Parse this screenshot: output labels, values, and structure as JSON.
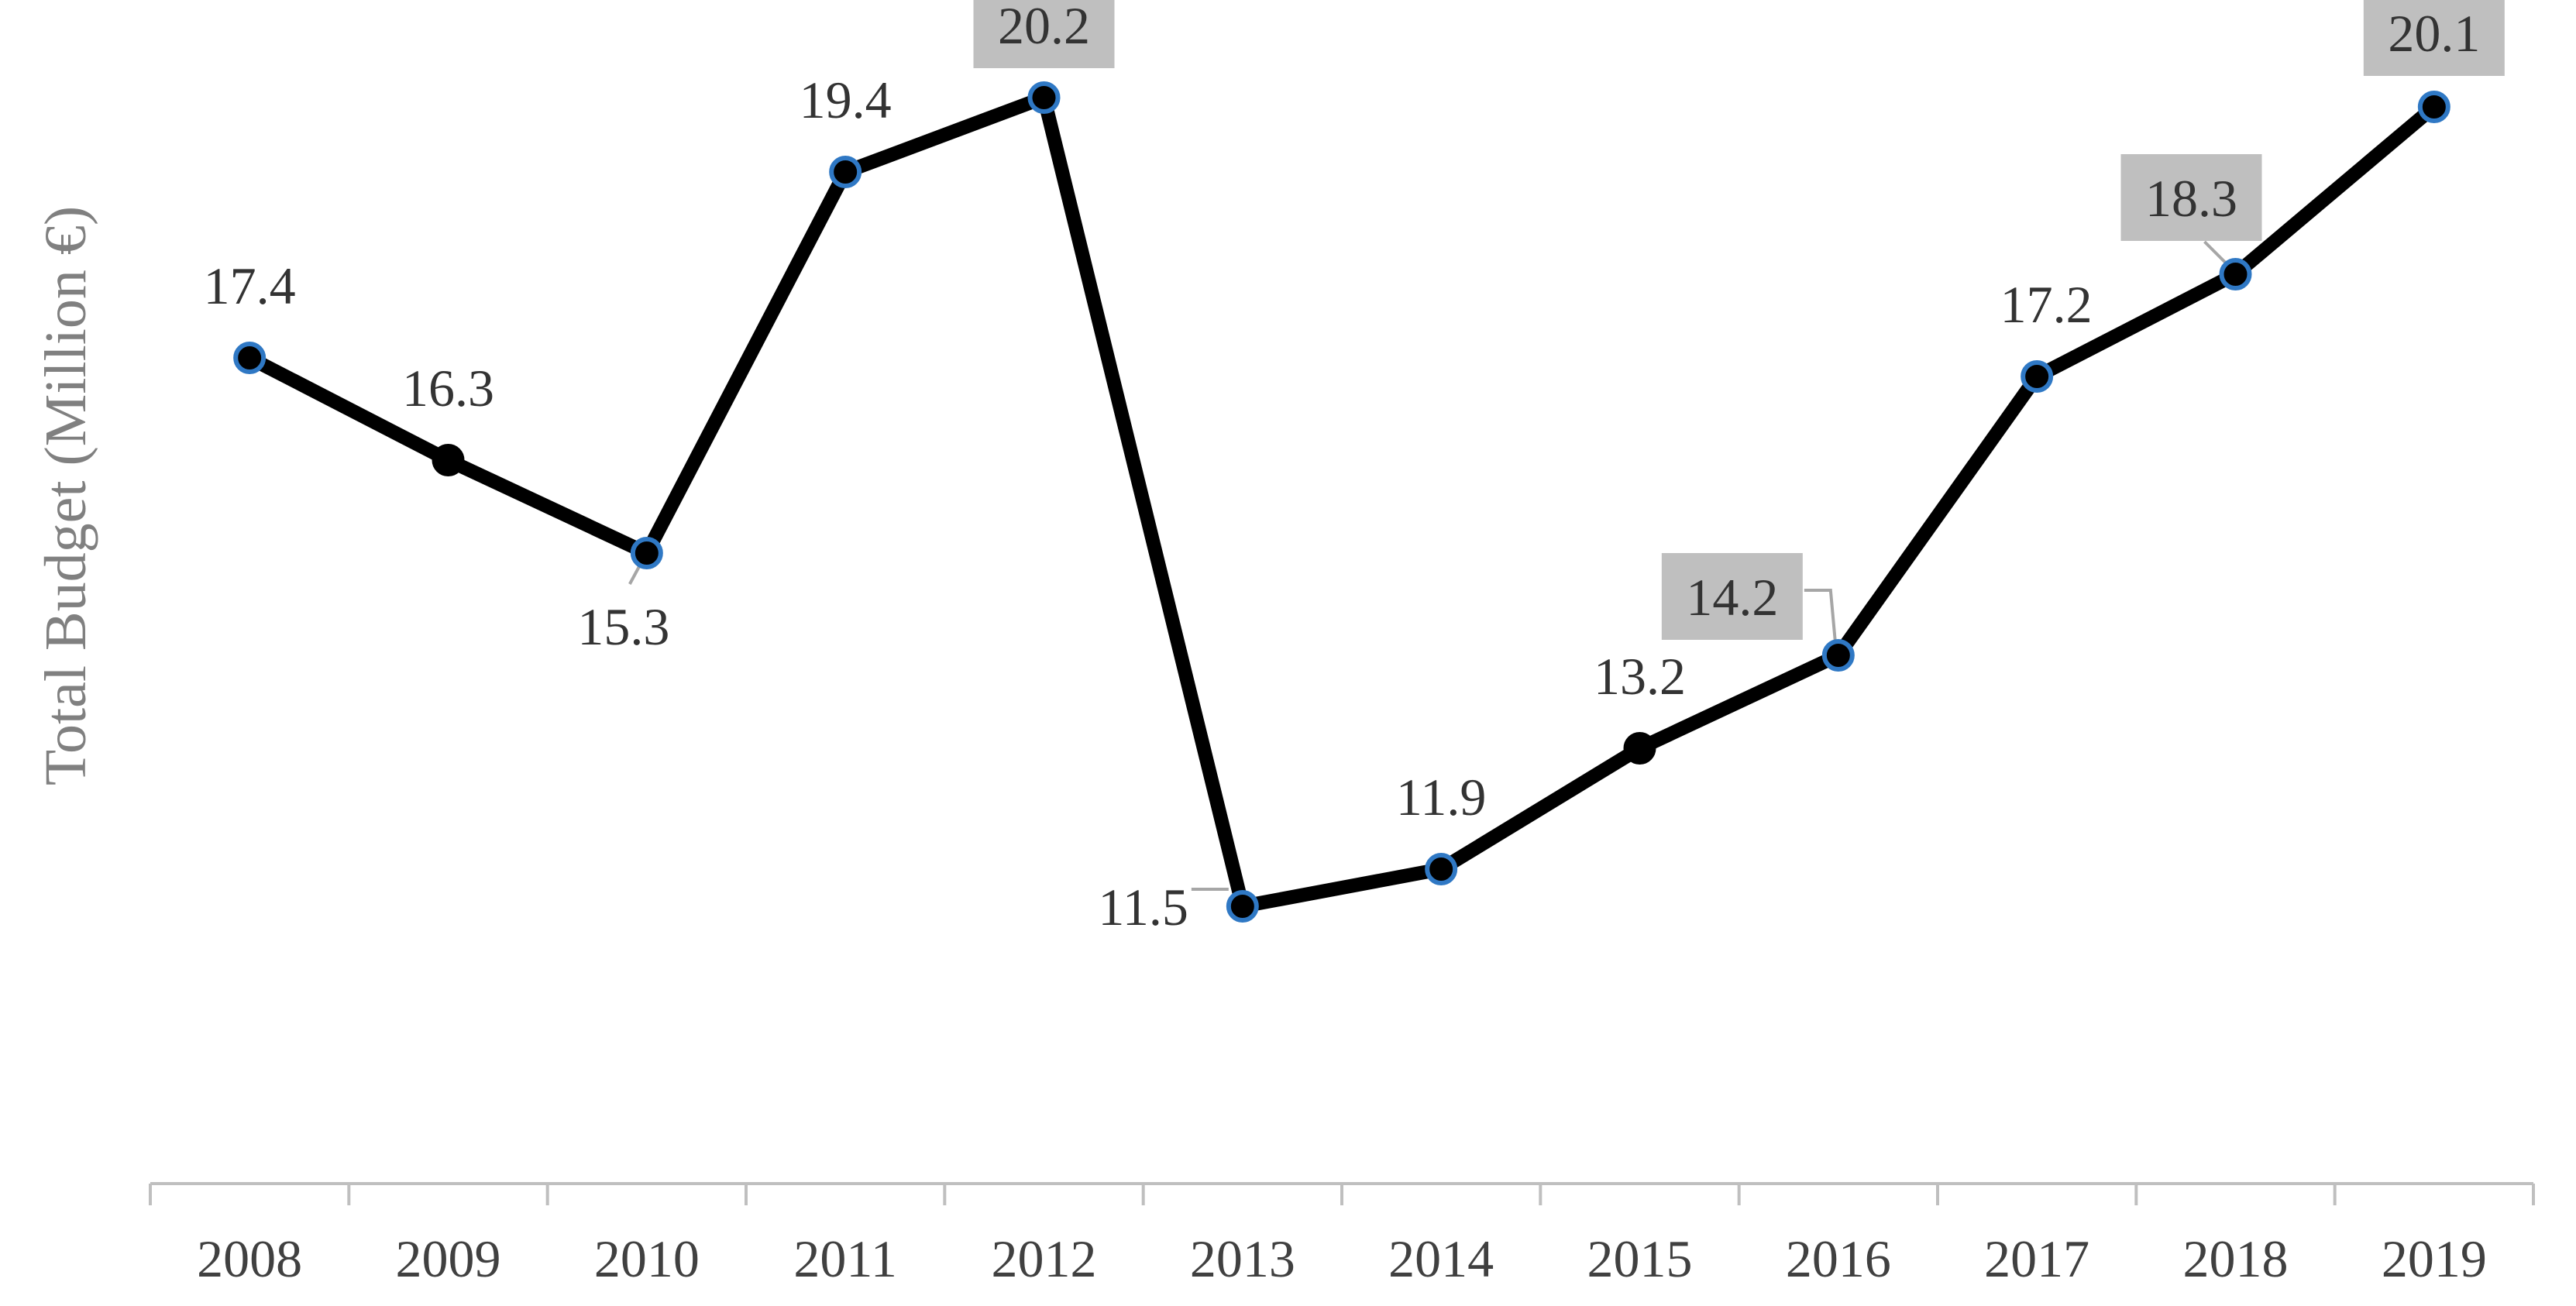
{
  "chart_data": {
    "type": "line",
    "title": "",
    "xlabel": "",
    "ylabel": "Total Budget (Million €)",
    "categories": [
      "2008",
      "2009",
      "2010",
      "2011",
      "2012",
      "2013",
      "2014",
      "2015",
      "2016",
      "2017",
      "2018",
      "2019"
    ],
    "series": [
      {
        "values": [
          17.4,
          16.3,
          15.3,
          19.4,
          20.2,
          11.5,
          11.9,
          13.2,
          14.2,
          17.2,
          18.3,
          20.1
        ],
        "data_labels": [
          "17.4",
          "16.3",
          "15.3",
          "19.4",
          "20.2",
          "11.5",
          "11.9",
          "13.2",
          "14.2",
          "17.2",
          "18.3",
          "20.1"
        ],
        "boxed_labels": [
          false,
          false,
          false,
          false,
          true,
          false,
          false,
          false,
          true,
          false,
          true,
          true
        ],
        "line_color": "#000000",
        "marker_edge_colors": [
          "#2f78c4",
          "#000000",
          "#2f78c4",
          "#2f78c4",
          "#2f78c4",
          "#2f78c4",
          "#2f78c4",
          "#000000",
          "#2f78c4",
          "#2f78c4",
          "#2f78c4",
          "#2f78c4"
        ]
      }
    ],
    "ylim": [
      9.0,
      21.0
    ],
    "grid": false,
    "legend": "none",
    "colors": {
      "axis": "#bfbfbf",
      "label_box": "#bfbfbf",
      "leader_line": "#a6a6a6"
    }
  }
}
